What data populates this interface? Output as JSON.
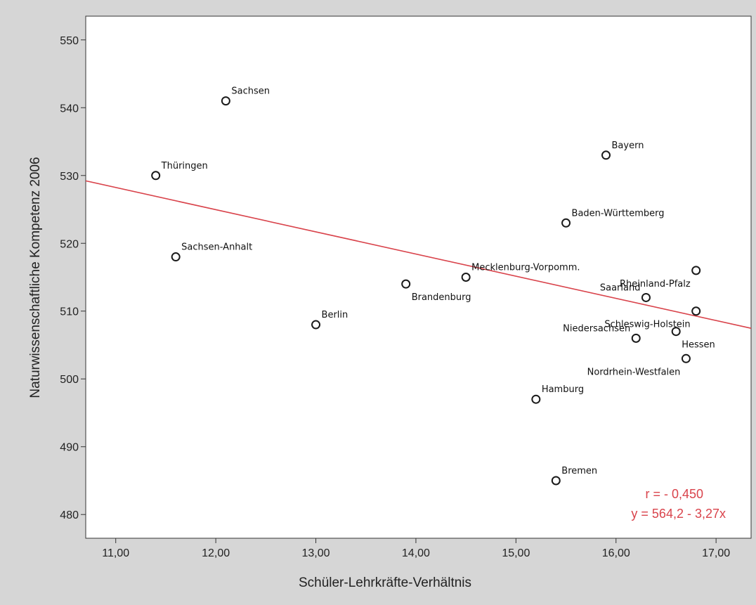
{
  "chart_data": {
    "type": "scatter",
    "title": "",
    "xlabel": "Schüler-Lehrkräfte-Verhältnis",
    "ylabel": "Naturwissenschaftliche Kompetenz 2006",
    "xlim": [
      10.7,
      17.35
    ],
    "ylim": [
      476.5,
      553.5
    ],
    "x_ticks": [
      "11,00",
      "12,00",
      "13,00",
      "14,00",
      "15,00",
      "16,00",
      "17,00"
    ],
    "x_tick_values": [
      11,
      12,
      13,
      14,
      15,
      16,
      17
    ],
    "y_ticks": [
      "480",
      "490",
      "500",
      "510",
      "520",
      "530",
      "540",
      "550"
    ],
    "y_tick_values": [
      480,
      490,
      500,
      510,
      520,
      530,
      540,
      550
    ],
    "grid": false,
    "points": [
      {
        "label": "Sachsen",
        "x": 12.1,
        "y": 541,
        "pos": "upper-right"
      },
      {
        "label": "Thüringen",
        "x": 11.4,
        "y": 530,
        "pos": "upper-right"
      },
      {
        "label": "Sachsen-Anhalt",
        "x": 11.6,
        "y": 518,
        "pos": "upper-right"
      },
      {
        "label": "Berlin",
        "x": 13.0,
        "y": 508,
        "pos": "upper-right"
      },
      {
        "label": "Brandenburg",
        "x": 13.9,
        "y": 514,
        "pos": "lower-right"
      },
      {
        "label": "Mecklenburg-Vorpomm.",
        "x": 14.5,
        "y": 515,
        "pos": "upper-right"
      },
      {
        "label": "Bayern",
        "x": 15.9,
        "y": 533,
        "pos": "upper-right"
      },
      {
        "label": "Baden-Württemberg",
        "x": 15.5,
        "y": 523,
        "pos": "upper-right"
      },
      {
        "label": "Saarland",
        "x": 16.3,
        "y": 512,
        "pos": "upper-left"
      },
      {
        "label": "Rheinland-Pfalz",
        "x": 16.8,
        "y": 516,
        "pos": "lower-left"
      },
      {
        "label": "Schleswig-Holstein",
        "x": 16.8,
        "y": 510,
        "pos": "lower-left"
      },
      {
        "label": "Niedersachsen",
        "x": 16.2,
        "y": 506,
        "pos": "upper-left"
      },
      {
        "label": "Hessen",
        "x": 16.6,
        "y": 507,
        "pos": "lower-right"
      },
      {
        "label": "Nordrhein-Westfalen",
        "x": 16.7,
        "y": 503,
        "pos": "lower-left"
      },
      {
        "label": "Hamburg",
        "x": 15.2,
        "y": 497,
        "pos": "upper-right"
      },
      {
        "label": "Bremen",
        "x": 15.4,
        "y": 485,
        "pos": "upper-right"
      }
    ],
    "regression": {
      "intercept": 564.2,
      "slope": -3.27,
      "color": "#d9434b"
    },
    "annotation": [
      "r = - 0,450",
      "y = 564,2 - 3,27x"
    ]
  },
  "colors": {
    "background": "#d6d6d6",
    "plot_area": "#ffffff",
    "marker": "#1a1a1a",
    "fit_line": "#d9434b"
  }
}
